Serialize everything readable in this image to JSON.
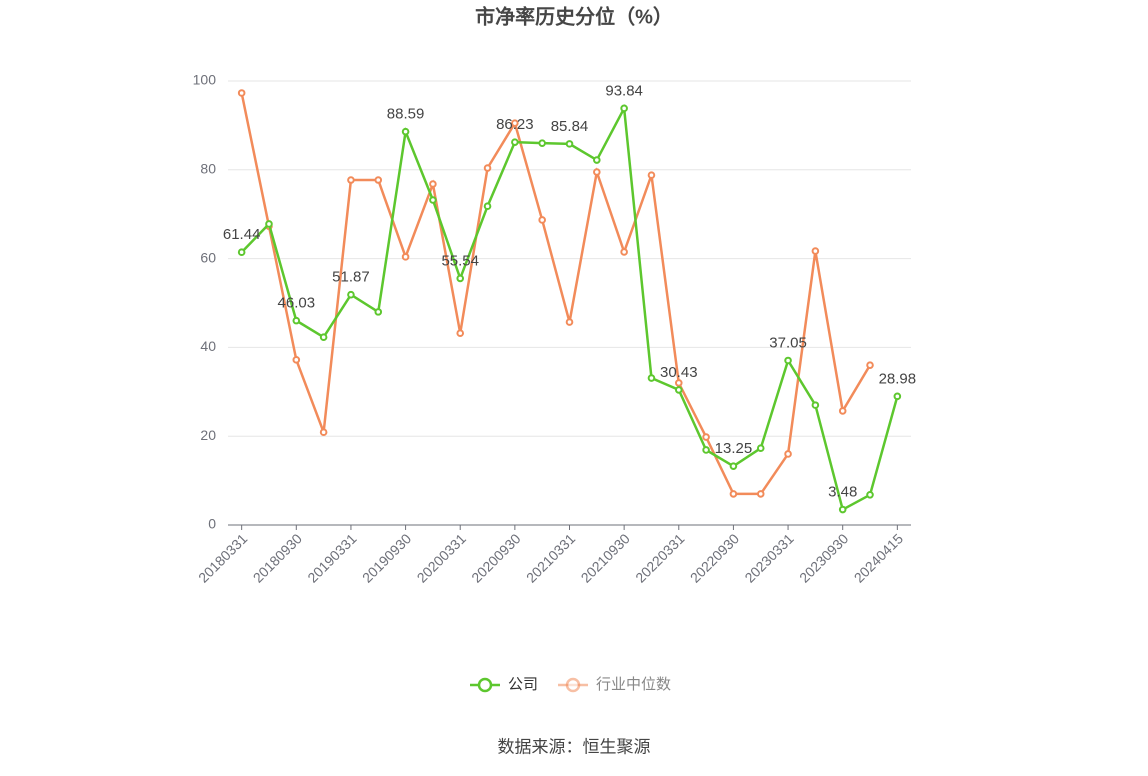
{
  "chart_data": {
    "type": "line",
    "title": "市净率历史分位（%）",
    "source": "数据来源：恒生聚源",
    "categories": [
      "20180331",
      null,
      "20180930",
      null,
      "20190331",
      null,
      "20190930",
      null,
      "20200331",
      null,
      "20200930",
      null,
      "20210331",
      null,
      "20210930",
      null,
      "20220331",
      null,
      "20220930",
      null,
      "20230331",
      null,
      "20230930",
      null,
      "20240415"
    ],
    "series": [
      {
        "name": "公司",
        "color": "#5dc72e",
        "values": [
          61.44,
          67.8,
          46.03,
          42.3,
          51.87,
          48.0,
          88.59,
          73.2,
          55.54,
          71.8,
          86.23,
          86.0,
          85.84,
          82.2,
          93.84,
          33.1,
          30.43,
          16.9,
          13.25,
          17.3,
          37.05,
          27.0,
          3.48,
          6.8,
          28.98
        ],
        "value_labels": [
          "61.44",
          null,
          "46.03",
          null,
          "51.87",
          null,
          "88.59",
          null,
          "55.54",
          null,
          "86.23",
          null,
          "85.84",
          null,
          "93.84",
          null,
          "30.43",
          null,
          "13.25",
          null,
          "37.05",
          null,
          "3.48",
          null,
          "28.98"
        ]
      },
      {
        "name": "行业中位数",
        "color": "#f28b5a",
        "values": [
          97.3,
          67.3,
          37.2,
          20.9,
          77.7,
          77.7,
          60.4,
          76.8,
          43.2,
          80.4,
          90.5,
          68.7,
          45.7,
          79.5,
          61.5,
          78.8,
          32.0,
          19.8,
          7.0,
          7.0,
          16.0,
          61.7,
          25.7,
          36.0,
          null
        ]
      }
    ],
    "ylim": [
      0,
      100
    ],
    "yticks": [
      0,
      20,
      40,
      60,
      80,
      100
    ],
    "grid": true
  }
}
